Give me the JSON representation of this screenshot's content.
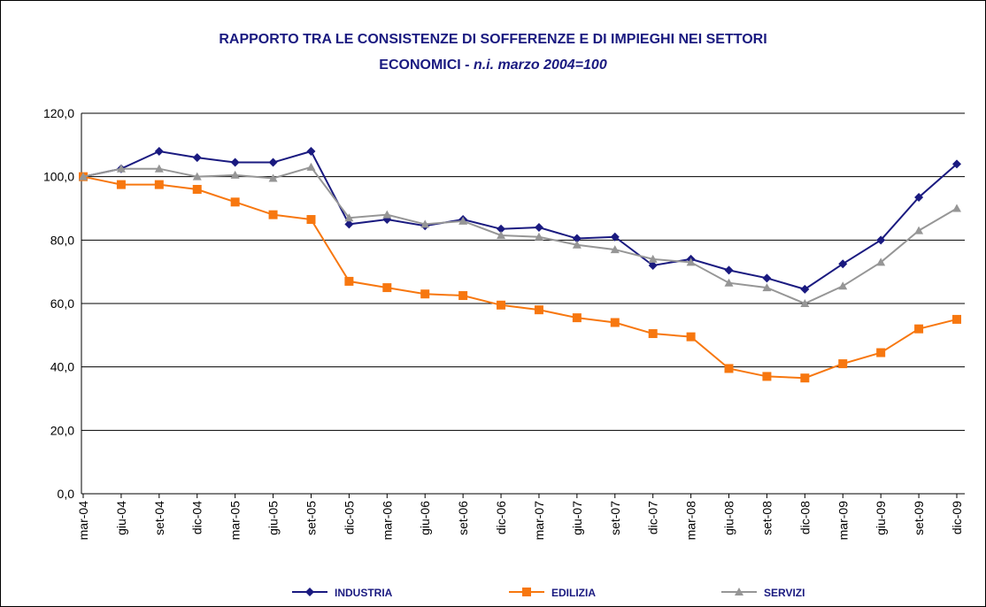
{
  "chart_data": {
    "type": "line",
    "title": [
      "RAPPORTO TRA LE CONSISTENZE DI SOFFERENZE E DI IMPIEGHI NEI SETTORI",
      "ECONOMICI -"
    ],
    "subtitle": "n.i. marzo 2004=100",
    "categories": [
      "mar-04",
      "giu-04",
      "set-04",
      "dic-04",
      "mar-05",
      "giu-05",
      "set-05",
      "dic-05",
      "mar-06",
      "giu-06",
      "set-06",
      "dic-06",
      "mar-07",
      "giu-07",
      "set-07",
      "dic-07",
      "mar-08",
      "giu-08",
      "set-08",
      "dic-08",
      "mar-09",
      "giu-09",
      "set-09",
      "dic-09"
    ],
    "series": [
      {
        "name": "INDUSTRIA",
        "color": "#1a1a80",
        "marker": "diamond",
        "values": [
          100,
          102.5,
          108,
          106,
          104.5,
          104.5,
          108,
          85,
          86.5,
          84.5,
          86.5,
          83.5,
          84,
          80.5,
          81,
          72,
          74,
          70.5,
          68,
          64.5,
          72.5,
          80,
          93.5,
          104
        ]
      },
      {
        "name": "EDILIZIA",
        "color": "#f7770f",
        "marker": "square",
        "values": [
          100,
          97.5,
          97.5,
          96,
          92,
          88,
          86.5,
          67,
          65,
          63,
          62.5,
          59.5,
          58,
          55.5,
          54,
          50.5,
          49.5,
          39.5,
          37,
          36.5,
          41,
          44.5,
          52,
          55
        ]
      },
      {
        "name": "SERVIZI",
        "color": "#969696",
        "marker": "triangle",
        "values": [
          100,
          102.5,
          102.5,
          100,
          100.5,
          99.5,
          103,
          87,
          88,
          85,
          86,
          81.5,
          81,
          78.5,
          77,
          74,
          73,
          66.5,
          65,
          60,
          65.5,
          73,
          83,
          90
        ]
      }
    ],
    "ylim": [
      0,
      120
    ],
    "yticks": [
      {
        "value": 0,
        "label": "0,0"
      },
      {
        "value": 20,
        "label": "20,0"
      },
      {
        "value": 40,
        "label": "40,0"
      },
      {
        "value": 60,
        "label": "60,0"
      },
      {
        "value": 80,
        "label": "80,0"
      },
      {
        "value": 100,
        "label": "100,0"
      },
      {
        "value": 120,
        "label": "120,0"
      }
    ],
    "grid": true,
    "legend": "bottom"
  }
}
